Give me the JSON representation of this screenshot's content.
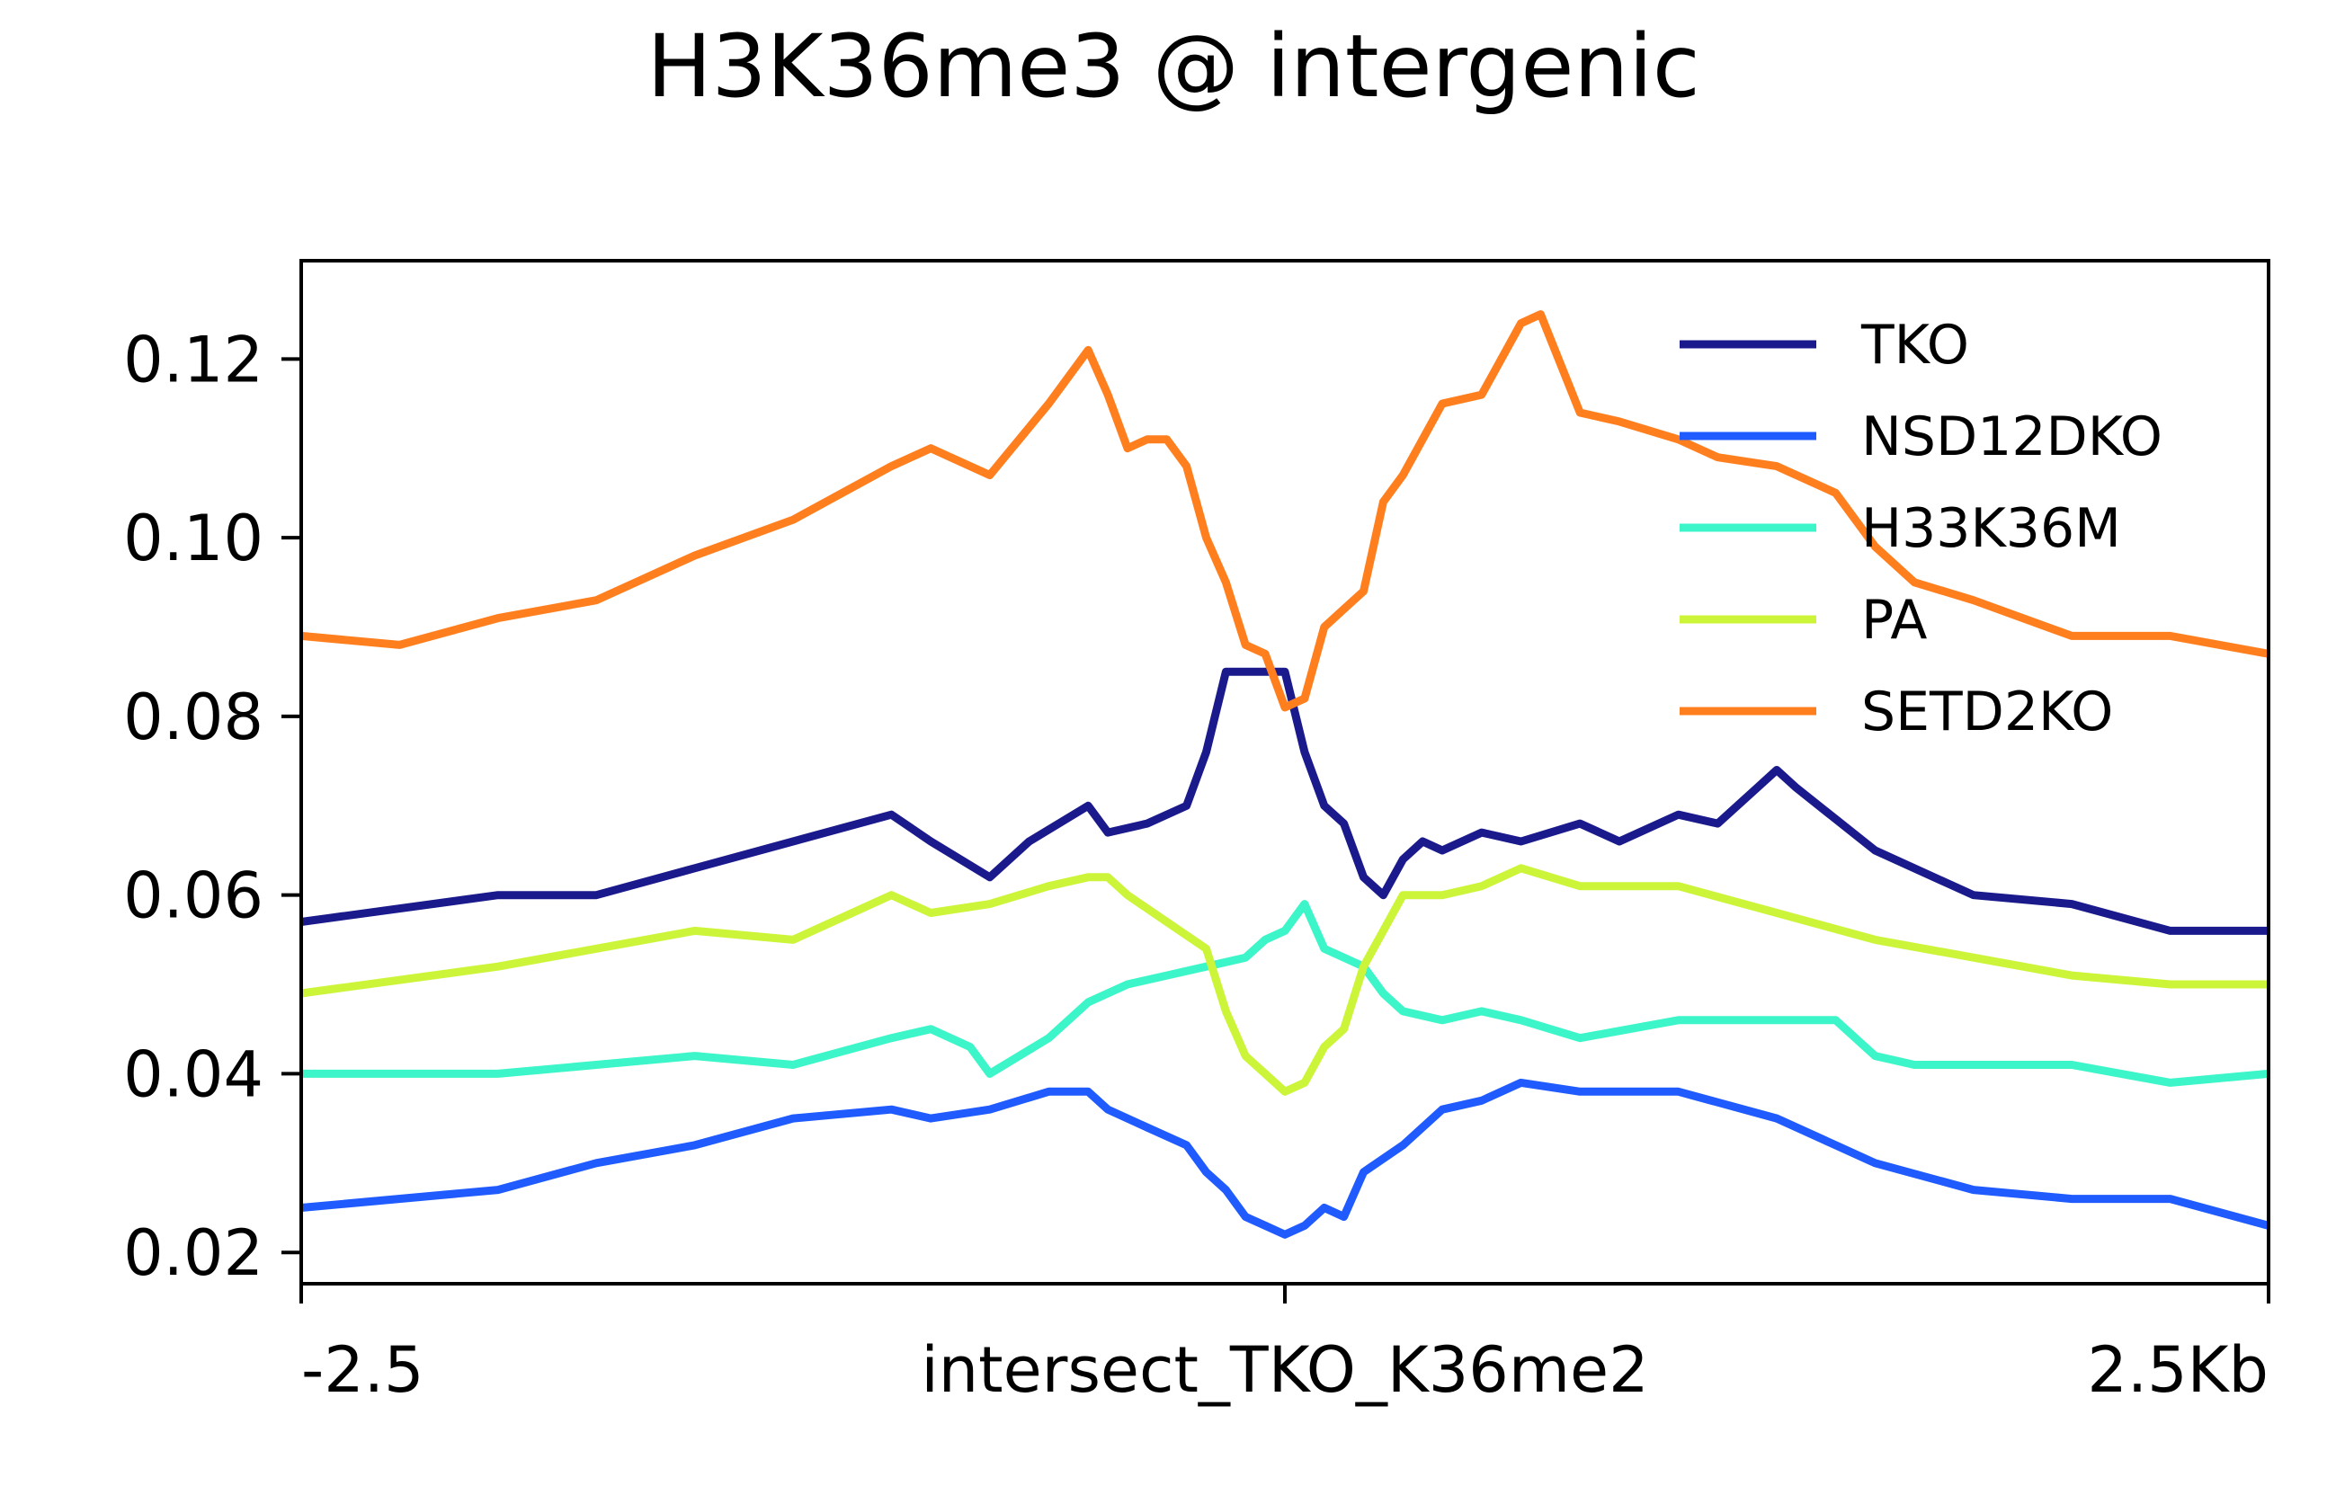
{
  "chart_data": {
    "type": "line",
    "title": "H3K36me3 @ intergenic",
    "xlabel": "",
    "ylabel": "",
    "x_tick_labels": [
      "-2.5",
      "intersect_TKO_K36me2",
      "2.5Kb"
    ],
    "x_tick_positions": [
      -2.5,
      0,
      2.5
    ],
    "xlim": [
      -2.5,
      2.5
    ],
    "y_ticks": [
      0.02,
      0.04,
      0.06,
      0.08,
      0.1,
      0.12
    ],
    "y_tick_labels": [
      "0.02",
      "0.04",
      "0.06",
      "0.08",
      "0.10",
      "0.12"
    ],
    "ylim": [
      0.0165,
      0.131
    ],
    "grid": false,
    "legend_position": "top-right",
    "series": [
      {
        "name": "TKO",
        "color": "#1a1a8c",
        "x": [
          -2.5,
          -2.0,
          -1.75,
          -1.5,
          -1.25,
          -1.0,
          -0.9,
          -0.75,
          -0.65,
          -0.5,
          -0.45,
          -0.35,
          -0.25,
          -0.2,
          -0.15,
          -0.1,
          -0.05,
          0.0,
          0.05,
          0.1,
          0.15,
          0.2,
          0.25,
          0.3,
          0.35,
          0.4,
          0.5,
          0.6,
          0.75,
          0.85,
          1.0,
          1.1,
          1.2,
          1.25,
          1.3,
          1.5,
          1.75,
          2.0,
          2.25,
          2.5
        ],
        "y": [
          0.057,
          0.06,
          0.06,
          0.063,
          0.066,
          0.069,
          0.066,
          0.062,
          0.066,
          0.07,
          0.067,
          0.068,
          0.07,
          0.076,
          0.085,
          0.085,
          0.085,
          0.085,
          0.076,
          0.07,
          0.068,
          0.062,
          0.06,
          0.064,
          0.066,
          0.065,
          0.067,
          0.066,
          0.068,
          0.066,
          0.069,
          0.068,
          0.072,
          0.074,
          0.072,
          0.065,
          0.06,
          0.059,
          0.056,
          0.056
        ]
      },
      {
        "name": "NSD12DKO",
        "color": "#1f5bff",
        "x": [
          -2.5,
          -2.0,
          -1.75,
          -1.5,
          -1.25,
          -1.0,
          -0.9,
          -0.75,
          -0.6,
          -0.5,
          -0.45,
          -0.35,
          -0.25,
          -0.2,
          -0.15,
          -0.1,
          -0.05,
          0.0,
          0.05,
          0.1,
          0.15,
          0.2,
          0.3,
          0.4,
          0.5,
          0.6,
          0.75,
          1.0,
          1.25,
          1.5,
          1.75,
          2.0,
          2.25,
          2.5
        ],
        "y": [
          0.025,
          0.027,
          0.03,
          0.032,
          0.035,
          0.036,
          0.035,
          0.036,
          0.038,
          0.038,
          0.036,
          0.034,
          0.032,
          0.029,
          0.027,
          0.024,
          0.023,
          0.022,
          0.023,
          0.025,
          0.024,
          0.029,
          0.032,
          0.036,
          0.037,
          0.039,
          0.038,
          0.038,
          0.035,
          0.03,
          0.027,
          0.026,
          0.026,
          0.023
        ]
      },
      {
        "name": "H33K36M",
        "color": "#3cf5c8",
        "x": [
          -2.5,
          -2.0,
          -1.75,
          -1.5,
          -1.25,
          -1.0,
          -0.9,
          -0.8,
          -0.75,
          -0.6,
          -0.5,
          -0.4,
          -0.3,
          -0.2,
          -0.1,
          -0.05,
          0.0,
          0.05,
          0.1,
          0.15,
          0.2,
          0.25,
          0.3,
          0.4,
          0.5,
          0.6,
          0.75,
          1.0,
          1.25,
          1.4,
          1.5,
          1.6,
          1.75,
          2.0,
          2.25,
          2.5
        ],
        "y": [
          0.04,
          0.04,
          0.041,
          0.042,
          0.041,
          0.044,
          0.045,
          0.043,
          0.04,
          0.044,
          0.048,
          0.05,
          0.051,
          0.052,
          0.053,
          0.055,
          0.056,
          0.059,
          0.054,
          0.053,
          0.052,
          0.049,
          0.047,
          0.046,
          0.047,
          0.046,
          0.044,
          0.046,
          0.046,
          0.046,
          0.042,
          0.041,
          0.041,
          0.041,
          0.039,
          0.04
        ]
      },
      {
        "name": "PA",
        "color": "#ccf53a",
        "x": [
          -2.5,
          -2.0,
          -1.75,
          -1.5,
          -1.25,
          -1.0,
          -0.9,
          -0.75,
          -0.6,
          -0.5,
          -0.45,
          -0.4,
          -0.3,
          -0.2,
          -0.15,
          -0.1,
          -0.05,
          0.0,
          0.05,
          0.1,
          0.15,
          0.2,
          0.25,
          0.3,
          0.4,
          0.5,
          0.6,
          0.75,
          1.0,
          1.25,
          1.5,
          1.75,
          2.0,
          2.25,
          2.5
        ],
        "y": [
          0.049,
          0.052,
          0.054,
          0.056,
          0.055,
          0.06,
          0.058,
          0.059,
          0.061,
          0.062,
          0.062,
          0.06,
          0.057,
          0.054,
          0.047,
          0.042,
          0.04,
          0.038,
          0.039,
          0.043,
          0.045,
          0.052,
          0.056,
          0.06,
          0.06,
          0.061,
          0.063,
          0.061,
          0.061,
          0.058,
          0.055,
          0.053,
          0.051,
          0.05,
          0.05
        ]
      },
      {
        "name": "SETD2KO",
        "color": "#ff7f1f",
        "x": [
          -2.5,
          -2.25,
          -2.0,
          -1.75,
          -1.5,
          -1.25,
          -1.0,
          -0.9,
          -0.75,
          -0.6,
          -0.5,
          -0.45,
          -0.4,
          -0.35,
          -0.3,
          -0.25,
          -0.2,
          -0.15,
          -0.1,
          -0.05,
          0.0,
          0.05,
          0.1,
          0.15,
          0.2,
          0.25,
          0.3,
          0.4,
          0.5,
          0.6,
          0.65,
          0.75,
          0.85,
          1.0,
          1.1,
          1.25,
          1.4,
          1.5,
          1.6,
          1.75,
          2.0,
          2.25,
          2.5
        ],
        "y": [
          0.089,
          0.088,
          0.091,
          0.093,
          0.098,
          0.102,
          0.108,
          0.11,
          0.107,
          0.115,
          0.121,
          0.116,
          0.11,
          0.111,
          0.111,
          0.108,
          0.1,
          0.095,
          0.088,
          0.087,
          0.081,
          0.082,
          0.09,
          0.092,
          0.094,
          0.104,
          0.107,
          0.115,
          0.116,
          0.124,
          0.125,
          0.114,
          0.113,
          0.111,
          0.109,
          0.108,
          0.105,
          0.099,
          0.095,
          0.093,
          0.089,
          0.089,
          0.087
        ]
      }
    ]
  }
}
